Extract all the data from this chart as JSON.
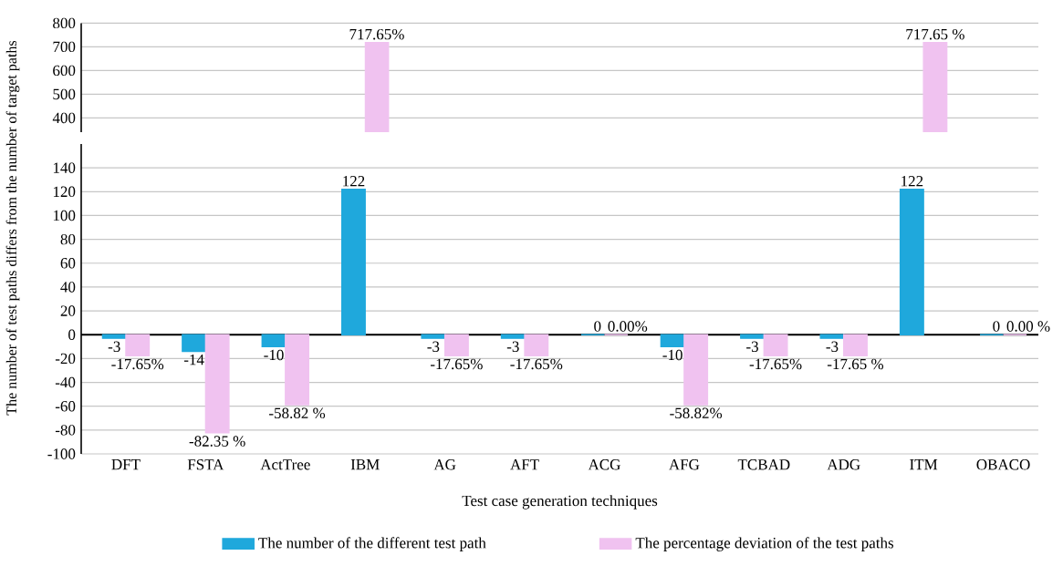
{
  "chart_data": [
    {
      "type": "bar",
      "categories": [
        null,
        null,
        null,
        null,
        null,
        null,
        null,
        null,
        null,
        null,
        null,
        null
      ],
      "series": [
        {
          "color": "#1fa8dc",
          "values": [
            null,
            null,
            null,
            null,
            null,
            null,
            null,
            null,
            null,
            null,
            null,
            null
          ]
        },
        {
          "color": "#f0c2f0",
          "values": [
            null,
            null,
            null,
            717.65,
            null,
            null,
            null,
            null,
            null,
            null,
            717.65,
            null
          ],
          "value_labels": [
            null,
            null,
            null,
            "717.65%",
            null,
            null,
            null,
            null,
            null,
            null,
            "717.65 %",
            null
          ]
        }
      ],
      "ylim": [
        340,
        800
      ],
      "yticks": [
        400,
        500,
        600,
        700,
        800
      ],
      "grid": "y",
      "tick_labels": "y"
    },
    {
      "type": "bar",
      "categories": [
        "DFT",
        "FSTA",
        "ActTree",
        "IBM",
        "AG",
        "AFT",
        "ACG",
        "AFG",
        "TCBAD",
        "ADG",
        "ITM",
        "OBACO"
      ],
      "series": [
        {
          "name": "The number of the different test path",
          "color": "#1fa8dc",
          "values": [
            -3,
            -14,
            -10,
            122,
            -3,
            -3,
            0,
            -10,
            -3,
            -3,
            122,
            0
          ],
          "value_labels": [
            "-3",
            "-14",
            "-10",
            "122",
            "-3",
            "-3",
            "0",
            "-10",
            "-3",
            "-3",
            "122",
            "0"
          ]
        },
        {
          "name": "The percentage deviation of the test paths",
          "color": "#f0c2f0",
          "values": [
            -17.65,
            -82.35,
            -58.82,
            null,
            -17.65,
            -17.65,
            0,
            -58.82,
            -17.65,
            -17.65,
            null,
            0
          ],
          "value_labels": [
            "-17.65%",
            "-82.35 %",
            "-58.82 %",
            null,
            "-17.65%",
            "-17.65%",
            "0.00%",
            "-58.82%",
            "-17.65%",
            "-17.65 %",
            null,
            "0.00 %"
          ]
        }
      ],
      "ylim": [
        -100,
        160
      ],
      "yticks": [
        -100,
        -80,
        -60,
        -40,
        -20,
        0,
        20,
        40,
        60,
        80,
        100,
        120,
        140
      ],
      "grid": "y",
      "xlabel": "Test case generation techniques",
      "ylabel": "The number of test paths differs from the number of target paths",
      "legend": "bottom"
    }
  ]
}
